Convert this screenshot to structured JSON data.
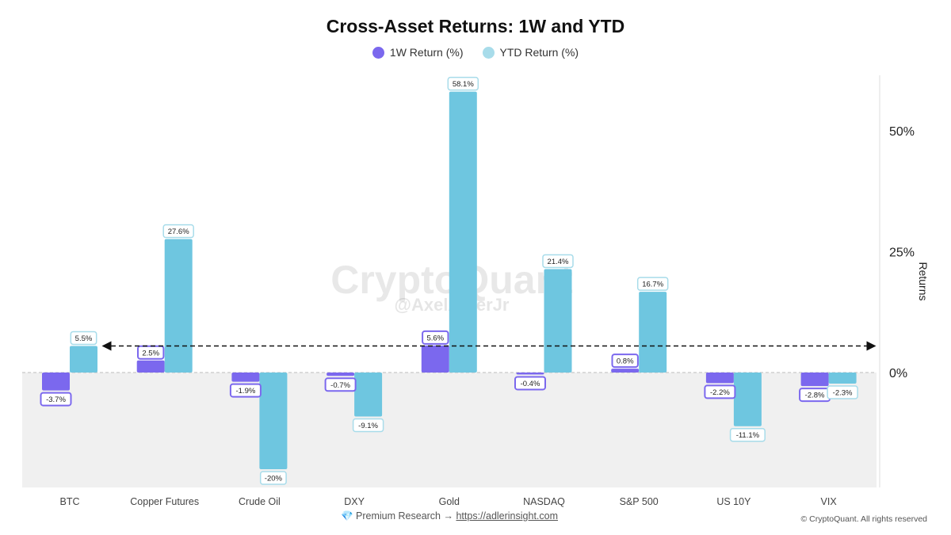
{
  "chart_data": {
    "type": "bar",
    "title": "Cross-Asset Returns: 1W and YTD",
    "xlabel": "",
    "ylabel": "Returns",
    "ylim": [
      -24,
      61
    ],
    "yticks": [
      {
        "value": 0,
        "label": "0%"
      },
      {
        "value": 25,
        "label": "25%"
      },
      {
        "value": 50,
        "label": "50%"
      }
    ],
    "legend_position": "top-center",
    "categories": [
      "BTC",
      "Copper Futures",
      "Crude Oil",
      "DXY",
      "Gold",
      "NASDAQ",
      "S&P 500",
      "US 10Y",
      "VIX"
    ],
    "series": [
      {
        "name": "1W Return (%)",
        "color": "#7b68ee",
        "values": [
          -3.7,
          2.5,
          -1.9,
          -0.7,
          5.6,
          -0.4,
          0.8,
          -2.2,
          -2.8
        ],
        "labels": [
          "-3.7%",
          "2.5%",
          "-1.9%",
          "-0.7%",
          "5.6%",
          "-0.4%",
          "0.8%",
          "-2.2%",
          "-2.8%"
        ]
      },
      {
        "name": "YTD Return (%)",
        "color": "#6ec6e0",
        "values": [
          5.5,
          27.6,
          -20,
          -9.1,
          58.1,
          21.4,
          16.7,
          -11.1,
          -2.3
        ],
        "labels": [
          "5.5%",
          "27.6%",
          "-20%",
          "-9.1%",
          "58.1%",
          "21.4%",
          "16.7%",
          "-11.1%",
          "-2.3%"
        ]
      }
    ],
    "reference_line": {
      "value": 5.5,
      "style": "dashed-double-arrow"
    }
  },
  "watermark": {
    "brand": "CryptoQuant",
    "handle": "@AxelAdlerJr"
  },
  "footer": {
    "premium_icon": "gem-icon",
    "premium_icon_glyph": "💎",
    "premium_text": "Premium Research →",
    "premium_link": "https://adlerinsight.com",
    "copyright": "© CryptoQuant. All rights reserved"
  }
}
